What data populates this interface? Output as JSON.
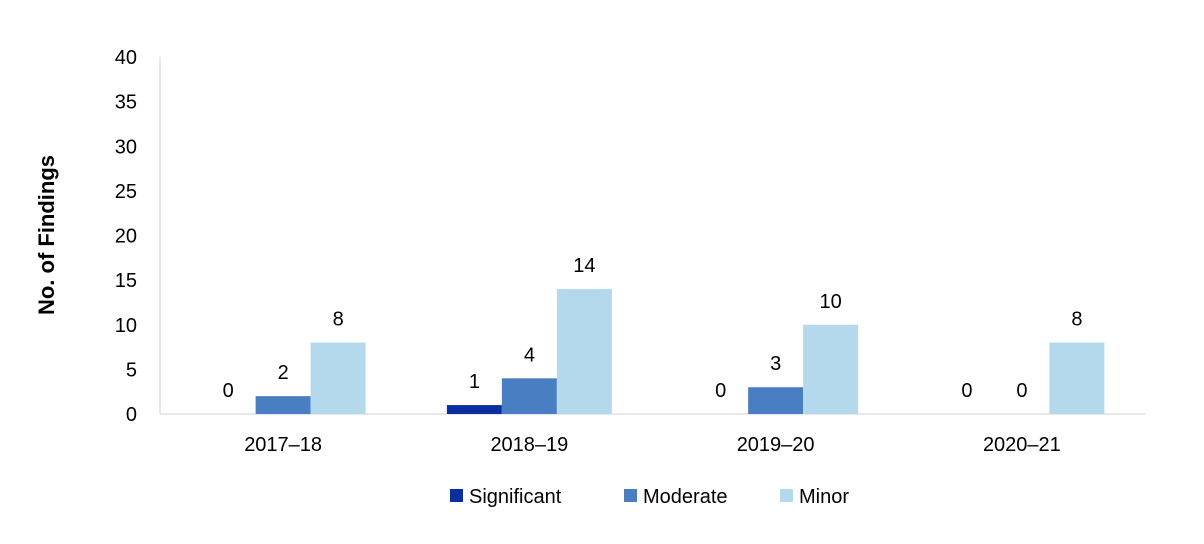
{
  "chart_data": {
    "type": "bar",
    "title": "",
    "xlabel": "",
    "ylabel": "No. of Findings",
    "ylim": [
      0,
      40
    ],
    "yticks": [
      0,
      5,
      10,
      15,
      20,
      25,
      30,
      35,
      40
    ],
    "categories": [
      "2017–18",
      "2018–19",
      "2019–20",
      "2020–21"
    ],
    "series": [
      {
        "name": "Significant",
        "color": "#0a2fa0",
        "values": [
          0,
          1,
          0,
          0
        ]
      },
      {
        "name": "Moderate",
        "color": "#4a7ec2",
        "values": [
          2,
          4,
          3,
          0
        ]
      },
      {
        "name": "Minor",
        "color": "#b4d9ec",
        "values": [
          8,
          14,
          10,
          8
        ]
      }
    ],
    "data_labels": true,
    "grid": false,
    "legend": "bottom"
  }
}
